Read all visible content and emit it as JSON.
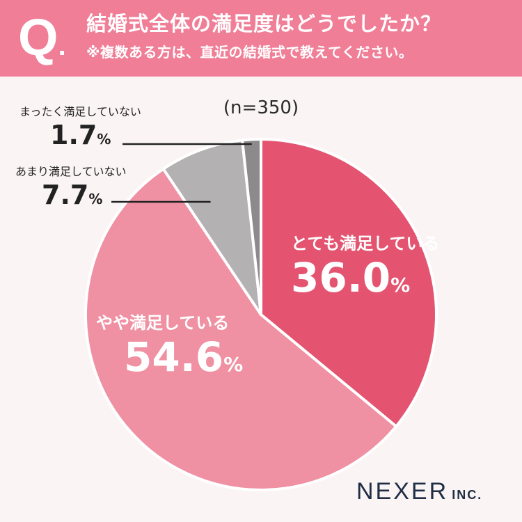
{
  "header": {
    "q_mark": "Q",
    "title": "結婚式全体の満足度はどうでしたか？",
    "note": "※複数ある方は、直近の結婚式で教えてください。"
  },
  "sample_size": "(n=350)",
  "logo": {
    "main": "NEXER",
    "suffix": "INC."
  },
  "colors": {
    "header_bg": "#f07e97",
    "very_satisfied": "#e4536f",
    "somewhat_satisfied": "#f091a3",
    "not_very_satisfied": "#b4b1b2",
    "not_satisfied": "#8c8a8a",
    "leader_line": "#222222"
  },
  "chart_data": {
    "type": "pie",
    "title": "結婚式全体の満足度はどうでしたか？",
    "categories": [
      "とても満足している",
      "やや満足している",
      "あまり満足していない",
      "まったく満足していない"
    ],
    "values": [
      36.0,
      54.6,
      7.7,
      1.7
    ],
    "labels": {
      "very_satisfied": {
        "name": "とても満足している",
        "value": "36.0",
        "unit": "%"
      },
      "somewhat_satisfied": {
        "name": "やや満足している",
        "value": "54.6",
        "unit": "%"
      },
      "not_very_satisfied": {
        "name": "あまり満足していない",
        "value": "7.7",
        "unit": "%"
      },
      "not_satisfied": {
        "name": "まったく満足していない",
        "value": "1.7",
        "unit": "%"
      }
    },
    "start_angle": "12 o'clock",
    "direction": "clockwise"
  }
}
